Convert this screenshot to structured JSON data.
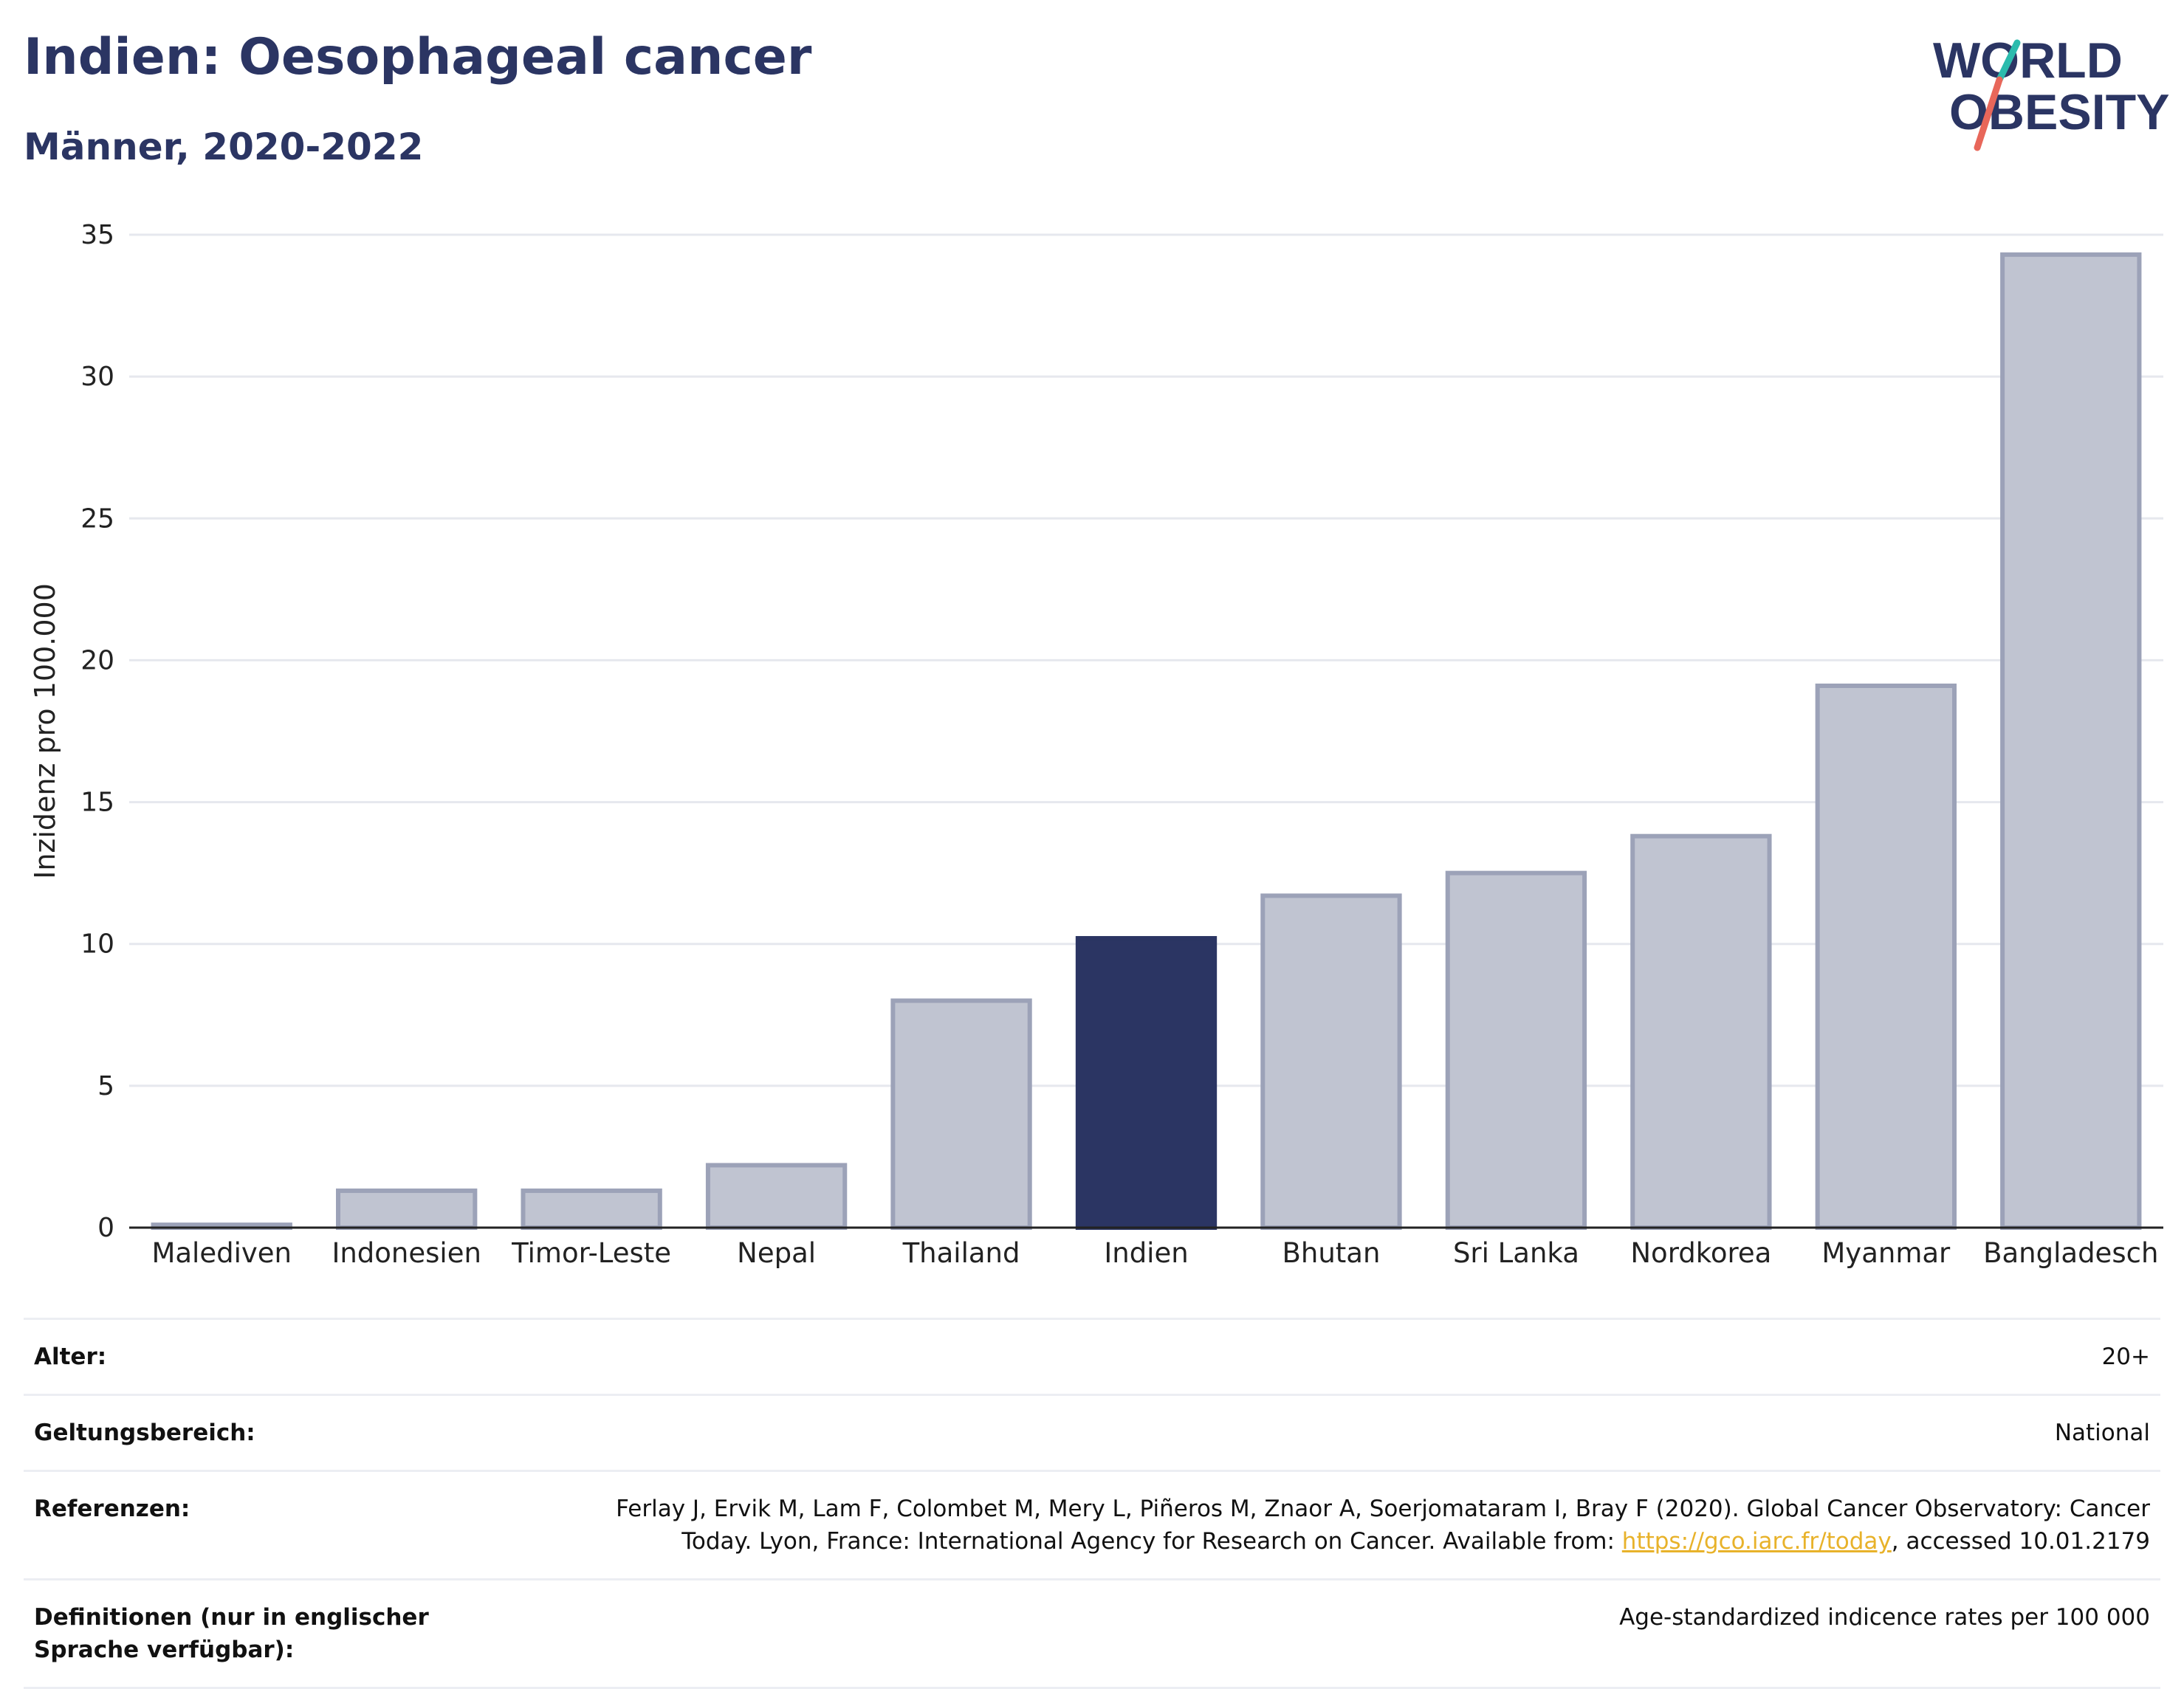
{
  "title": "Indien: Oesophageal cancer",
  "subtitle": "Männer, 2020-2022",
  "logo": {
    "line1": "WORLD",
    "line2": "OBESITY",
    "text_color": "#2b3563",
    "accent_teal": "#2bbbad",
    "accent_red": "#e8675a"
  },
  "chart_data": {
    "type": "bar",
    "categories": [
      "Malediven",
      "Indonesien",
      "Timor-Leste",
      "Nepal",
      "Thailand",
      "Indien",
      "Bhutan",
      "Sri Lanka",
      "Nordkorea",
      "Myanmar",
      "Bangladesch"
    ],
    "values": [
      0.1,
      1.3,
      1.3,
      2.2,
      8.0,
      10.2,
      11.7,
      12.5,
      13.8,
      19.1,
      34.3
    ],
    "highlight": "Indien",
    "ylabel": "Inzidenz pro 100.000",
    "ylim": [
      0,
      35
    ],
    "yticks": [
      0,
      5,
      10,
      15,
      20,
      25,
      30,
      35
    ],
    "grid": true,
    "colors": {
      "bar": "#c0c4d1",
      "bar_border": "#9ca2b8",
      "highlight": "#2b3563",
      "grid": "#e6e8ee",
      "axis": "#222222"
    }
  },
  "meta": {
    "age_label": "Alter:",
    "age_value": "20+",
    "scope_label": "Geltungsbereich:",
    "scope_value": "National",
    "ref_label": "Referenzen:",
    "ref_text_before": "Ferlay J, Ervik M, Lam F, Colombet M, Mery L, Piñeros M, Znaor A, Soerjomataram I, Bray F (2020). Global Cancer Observatory: Cancer Today. Lyon, France: International Agency for Research on Cancer. Available from: ",
    "ref_link": "https://gco.iarc.fr/today",
    "ref_text_after": ", accessed 10.01.2179",
    "def_label": "Definitionen (nur in englischer Sprache verfügbar):",
    "def_value": "Age-standardized indicence rates per 100 000"
  }
}
